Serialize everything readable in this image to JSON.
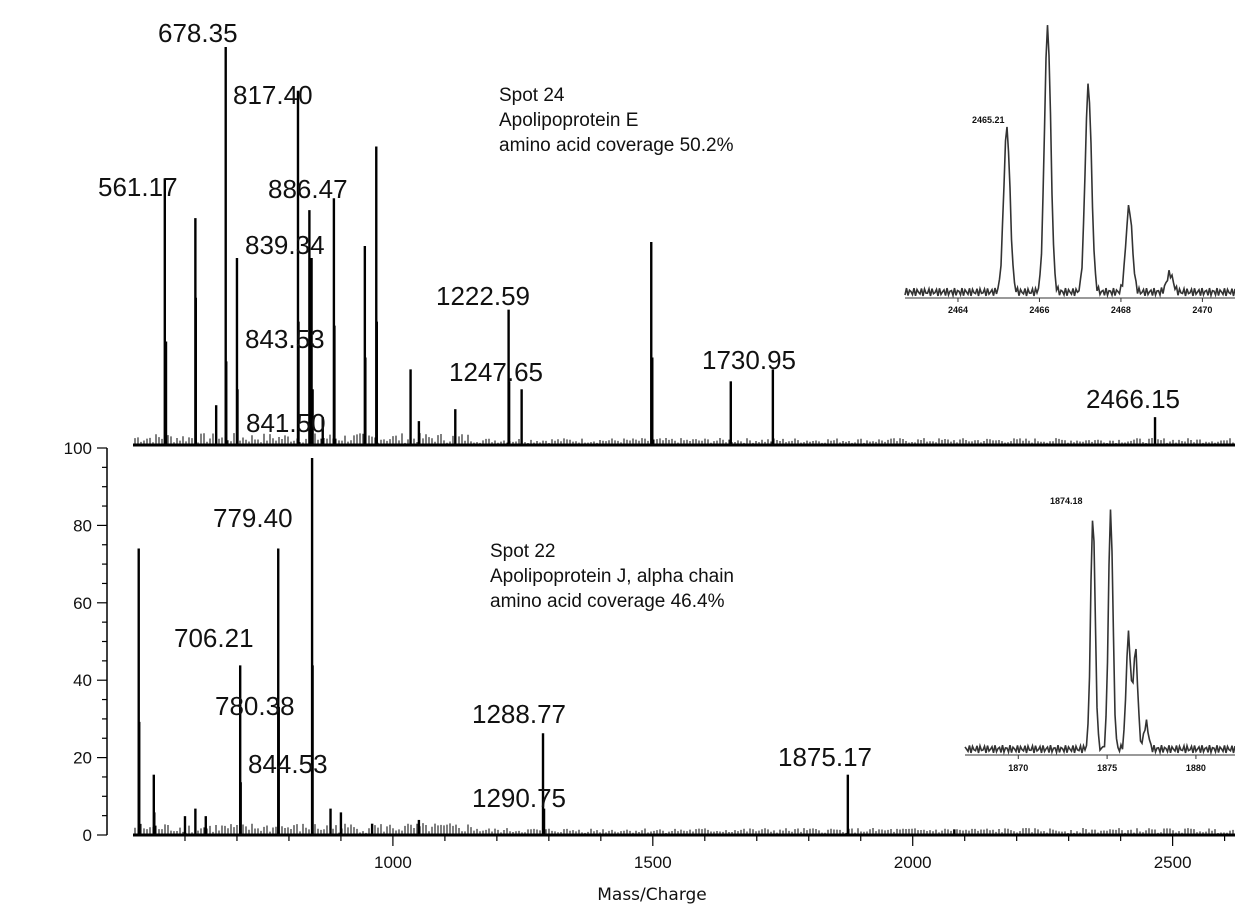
{
  "chart_data": [
    {
      "type": "line",
      "chart_style": "mass-spectrum stick plot",
      "panel": "top",
      "annotation": [
        "Spot 24",
        "Apolipoprotein E",
        "amino acid coverage 50.2%"
      ],
      "x_range": [
        500,
        2620
      ],
      "y_range": [
        0,
        100
      ],
      "peaks": [
        {
          "x": 561.17,
          "y": 67,
          "label": "561.17"
        },
        {
          "x": 563.5,
          "y": 26
        },
        {
          "x": 620,
          "y": 57
        },
        {
          "x": 620.8,
          "y": 37
        },
        {
          "x": 660,
          "y": 10
        },
        {
          "x": 678.35,
          "y": 100,
          "label": "678.35"
        },
        {
          "x": 679.4,
          "y": 21
        },
        {
          "x": 700,
          "y": 47
        },
        {
          "x": 701,
          "y": 14
        },
        {
          "x": 817.4,
          "y": 89,
          "label": "817.40"
        },
        {
          "x": 818.4,
          "y": 31
        },
        {
          "x": 839.34,
          "y": 59,
          "label": "839.34"
        },
        {
          "x": 843.53,
          "y": 47,
          "label": "843.53"
        },
        {
          "x": 845.5,
          "y": 14
        },
        {
          "x": 865,
          "y": 7
        },
        {
          "x": 886.47,
          "y": 62,
          "label": "886.47"
        },
        {
          "x": 887.5,
          "y": 30
        },
        {
          "x": 946,
          "y": 50
        },
        {
          "x": 947,
          "y": 22
        },
        {
          "x": 968,
          "y": 75
        },
        {
          "x": 969,
          "y": 31
        },
        {
          "x": 1034,
          "y": 19
        },
        {
          "x": 1050,
          "y": 6
        },
        {
          "x": 1120,
          "y": 9
        },
        {
          "x": 1222.59,
          "y": 34,
          "label": "1222.59"
        },
        {
          "x": 1223.6,
          "y": 16
        },
        {
          "x": 1247.65,
          "y": 14,
          "label": "1247.65"
        },
        {
          "x": 1497,
          "y": 51
        },
        {
          "x": 1499,
          "y": 22
        },
        {
          "x": 1650,
          "y": 16
        },
        {
          "x": 1730.95,
          "y": 19,
          "label": "1730.95"
        },
        {
          "x": 2466.15,
          "y": 7,
          "label": "2466.15"
        }
      ],
      "minor_labels": [
        {
          "text": "841.50"
        }
      ],
      "inset": {
        "x_ticks": [
          "2464",
          "2466",
          "2468",
          "2470"
        ],
        "x_range": [
          2462.7,
          2470.8
        ],
        "peak_label": "2465.21",
        "isotope_peaks": [
          {
            "x": 2465.2,
            "y": 0.62
          },
          {
            "x": 2466.2,
            "y": 1.0
          },
          {
            "x": 2467.2,
            "y": 0.78
          },
          {
            "x": 2468.2,
            "y": 0.32
          },
          {
            "x": 2469.2,
            "y": 0.07
          }
        ]
      }
    },
    {
      "type": "line",
      "chart_style": "mass-spectrum stick plot",
      "panel": "bottom",
      "annotation": [
        "Spot 22",
        "Apolipoprotein J, alpha chain",
        "amino acid coverage 46.4%"
      ],
      "x_range": [
        500,
        2620
      ],
      "y_range": [
        0,
        100
      ],
      "y_ticks": [
        "0",
        "20",
        "40",
        "60",
        "80",
        "100"
      ],
      "x_ticks": [
        "1000",
        "1500",
        "2000",
        "2500"
      ],
      "xlabel": "Mass/Charge",
      "peaks": [
        {
          "x": 511,
          "y": 76
        },
        {
          "x": 512,
          "y": 30
        },
        {
          "x": 540,
          "y": 16
        },
        {
          "x": 541,
          "y": 6
        },
        {
          "x": 600,
          "y": 5
        },
        {
          "x": 620,
          "y": 7
        },
        {
          "x": 640,
          "y": 5
        },
        {
          "x": 706.21,
          "y": 45,
          "label": "706.21"
        },
        {
          "x": 707.2,
          "y": 14
        },
        {
          "x": 779.4,
          "y": 76,
          "label": "779.40"
        },
        {
          "x": 780.38,
          "y": 34,
          "label": "780.38"
        },
        {
          "x": 844.53,
          "y": 100,
          "label": "844.53"
        },
        {
          "x": 845.5,
          "y": 45
        },
        {
          "x": 880,
          "y": 7
        },
        {
          "x": 900,
          "y": 6
        },
        {
          "x": 960,
          "y": 3
        },
        {
          "x": 1050,
          "y": 4
        },
        {
          "x": 1288.77,
          "y": 27,
          "label": "1288.77"
        },
        {
          "x": 1290.75,
          "y": 7,
          "label": "1290.75"
        },
        {
          "x": 1875.17,
          "y": 16,
          "label": "1875.17"
        },
        {
          "x": 2080,
          "y": 1.5
        }
      ],
      "inset": {
        "x_ticks": [
          "1870",
          "1875",
          "1880"
        ],
        "x_range": [
          1867,
          1882.2
        ],
        "peak_label": "1874.18",
        "isotope_peaks": [
          {
            "x": 1874.2,
            "y": 0.9
          },
          {
            "x": 1875.2,
            "y": 0.92
          },
          {
            "x": 1876.2,
            "y": 0.44
          },
          {
            "x": 1876.6,
            "y": 0.38
          },
          {
            "x": 1877.2,
            "y": 0.1
          }
        ]
      }
    }
  ]
}
